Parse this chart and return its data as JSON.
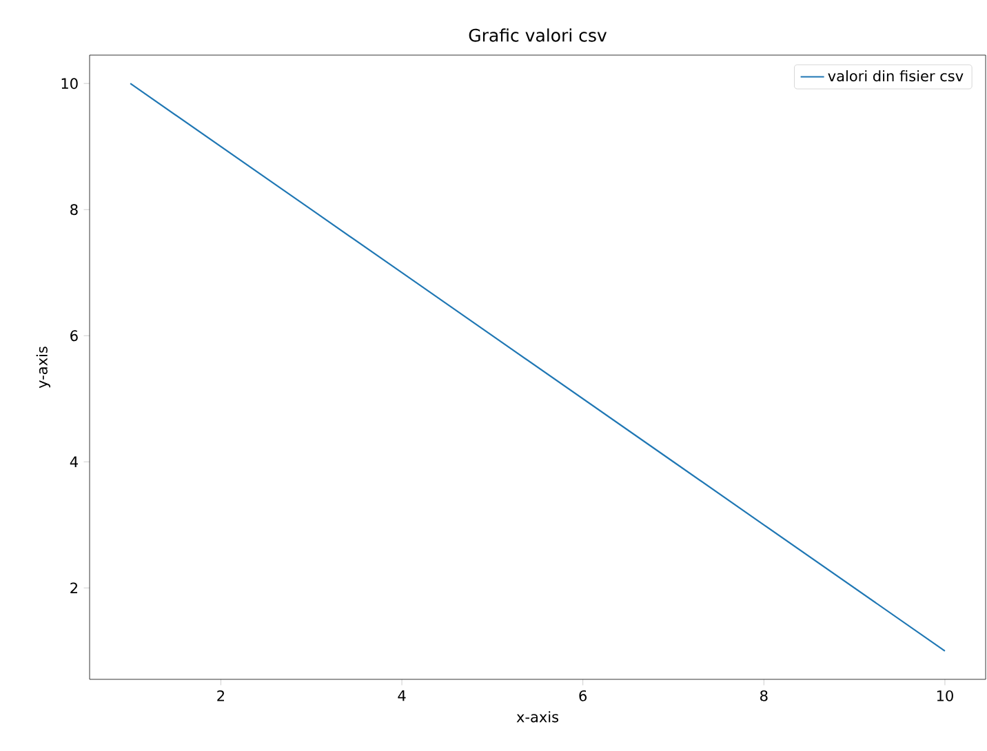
{
  "chart_data": {
    "type": "line",
    "title": "Grafic valori csv",
    "xlabel": "x-axis",
    "ylabel": "y-axis",
    "x": [
      1,
      2,
      3,
      4,
      5,
      6,
      7,
      8,
      9,
      10
    ],
    "series": [
      {
        "name": "valori din fisier csv",
        "color": "#1f77b4",
        "values": [
          10,
          9,
          8,
          7,
          6,
          5,
          4,
          3,
          2,
          1
        ]
      }
    ],
    "xlim": [
      0.55,
      10.45
    ],
    "ylim": [
      0.55,
      10.45
    ],
    "xticks": [
      2,
      4,
      6,
      8,
      10
    ],
    "yticks": [
      2,
      4,
      6,
      8,
      10
    ],
    "legend": "top right",
    "marker": "none",
    "line_style": "solid",
    "grid": false
  }
}
